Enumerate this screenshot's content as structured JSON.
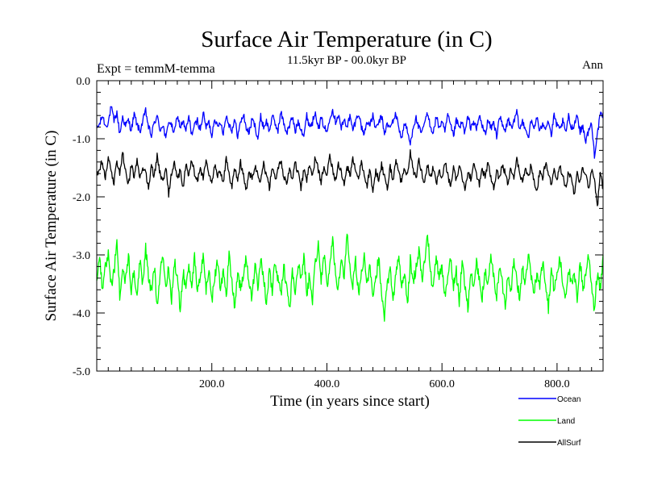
{
  "chart_data": {
    "type": "line",
    "title": "Surface Air Temperature (in C)",
    "subtitle": "11.5kyr BP - 00.0kyr BP",
    "left_note": "Expt = temmM-temma",
    "right_note": "Ann",
    "xlabel": "Time (in years since start)",
    "ylabel": "Surface Air Temperature (in C)",
    "xlim": [
      0,
      880
    ],
    "ylim": [
      -5.0,
      0.0
    ],
    "x_ticks": [
      {
        "value": 200,
        "label": "200.0"
      },
      {
        "value": 400,
        "label": "400.0"
      },
      {
        "value": 600,
        "label": "600.0"
      },
      {
        "value": 800,
        "label": "800.0"
      }
    ],
    "y_ticks": [
      {
        "value": 0.0,
        "label": "0.0"
      },
      {
        "value": -1.0,
        "label": "-1.0"
      },
      {
        "value": -2.0,
        "label": "-2.0"
      },
      {
        "value": -3.0,
        "label": "-3.0"
      },
      {
        "value": -4.0,
        "label": "-4.0"
      },
      {
        "value": -5.0,
        "label": "-5.0"
      }
    ],
    "legend_position": "bottom-right",
    "series": [
      {
        "name": "Ocean",
        "color": "#0000ff",
        "mean": -0.8,
        "x_step": 5,
        "values": [
          -0.82,
          -0.75,
          -0.6,
          -0.78,
          -0.72,
          -0.45,
          -0.7,
          -0.55,
          -0.92,
          -0.62,
          -0.78,
          -0.68,
          -0.85,
          -0.58,
          -0.75,
          -0.88,
          -0.7,
          -0.52,
          -0.8,
          -0.95,
          -0.72,
          -0.62,
          -0.85,
          -0.75,
          -1.02,
          -0.68,
          -0.78,
          -0.9,
          -0.6,
          -0.8,
          -0.7,
          -0.88,
          -0.62,
          -0.92,
          -0.78,
          -0.68,
          -0.85,
          -0.55,
          -0.8,
          -0.72,
          -0.95,
          -0.62,
          -0.82,
          -0.7,
          -0.9,
          -0.6,
          -0.75,
          -0.85,
          -0.68,
          -0.95,
          -0.72,
          -0.58,
          -0.82,
          -0.9,
          -0.66,
          -0.78,
          -1.0,
          -0.62,
          -0.8,
          -0.7,
          -0.88,
          -0.6,
          -0.75,
          -0.85,
          -0.55,
          -0.72,
          -0.9,
          -0.78,
          -0.62,
          -0.88,
          -0.7,
          -0.82,
          -0.95,
          -0.6,
          -0.78,
          -0.72,
          -0.5,
          -0.85,
          -0.65,
          -0.78,
          -0.9,
          -0.62,
          -0.5,
          -0.7,
          -0.58,
          -0.82,
          -0.68,
          -0.78,
          -0.62,
          -0.85,
          -0.7,
          -0.55,
          -0.8,
          -0.92,
          -0.68,
          -0.78,
          -0.6,
          -0.85,
          -0.72,
          -0.62,
          -0.9,
          -0.75,
          -0.82,
          -0.68,
          -0.58,
          -0.8,
          -1.0,
          -0.72,
          -0.88,
          -1.1,
          -0.78,
          -0.65,
          -0.82,
          -0.92,
          -0.7,
          -0.58,
          -0.78,
          -0.9,
          -0.62,
          -0.8,
          -0.72,
          -0.88,
          -0.6,
          -0.78,
          -0.95,
          -0.68,
          -0.82,
          -0.72,
          -0.9,
          -0.62,
          -0.8,
          -0.7,
          -0.85,
          -0.6,
          -0.78,
          -0.92,
          -0.68,
          -0.82,
          -0.72,
          -0.95,
          -0.6,
          -0.78,
          -0.88,
          -0.66,
          -0.8,
          -0.72,
          -0.55,
          -0.85,
          -0.7,
          -0.8,
          -0.98,
          -0.7,
          -0.82,
          -0.62,
          -0.9,
          -0.72,
          -0.8,
          -0.68,
          -0.95,
          -0.6,
          -0.78,
          -0.85,
          -0.7,
          -0.9,
          -0.62,
          -0.82,
          -0.75,
          -0.58,
          -0.88,
          -0.78,
          -1.05,
          -0.85,
          -0.75,
          -1.28,
          -0.92,
          -0.6
        ]
      },
      {
        "name": "Land",
        "color": "#00ff00",
        "mean": -3.35,
        "x_step": 5,
        "values": [
          -3.4,
          -3.1,
          -3.6,
          -3.2,
          -2.95,
          -3.5,
          -3.3,
          -2.8,
          -3.7,
          -3.15,
          -3.45,
          -3.0,
          -3.6,
          -3.3,
          -3.8,
          -3.1,
          -3.5,
          -2.9,
          -3.4,
          -3.65,
          -3.2,
          -3.85,
          -3.3,
          -3.0,
          -3.55,
          -3.25,
          -3.75,
          -3.1,
          -3.45,
          -3.9,
          -3.3,
          -3.6,
          -3.15,
          -3.5,
          -3.05,
          -3.7,
          -3.35,
          -3.0,
          -3.6,
          -3.25,
          -3.8,
          -3.4,
          -3.1,
          -3.55,
          -3.3,
          -3.7,
          -3.0,
          -3.45,
          -3.9,
          -3.25,
          -3.6,
          -3.35,
          -3.05,
          -3.5,
          -3.75,
          -3.2,
          -3.55,
          -3.0,
          -3.4,
          -3.85,
          -3.3,
          -3.6,
          -3.1,
          -3.45,
          -3.7,
          -3.2,
          -3.5,
          -3.95,
          -3.3,
          -3.6,
          -3.15,
          -3.45,
          -3.0,
          -3.65,
          -3.35,
          -3.75,
          -3.1,
          -2.85,
          -3.4,
          -3.0,
          -3.55,
          -3.2,
          -2.75,
          -3.3,
          -3.6,
          -3.0,
          -3.4,
          -2.6,
          -3.2,
          -3.5,
          -3.1,
          -3.7,
          -3.3,
          -3.0,
          -3.55,
          -3.2,
          -3.8,
          -3.4,
          -3.05,
          -3.6,
          -4.05,
          -3.5,
          -3.2,
          -3.75,
          -3.35,
          -3.0,
          -3.6,
          -3.3,
          -3.85,
          -3.1,
          -3.5,
          -3.2,
          -2.9,
          -3.45,
          -3.1,
          -2.65,
          -3.3,
          -3.6,
          -3.0,
          -3.45,
          -3.2,
          -3.7,
          -3.35,
          -3.05,
          -3.55,
          -3.3,
          -3.8,
          -3.15,
          -3.5,
          -3.9,
          -3.3,
          -3.6,
          -3.1,
          -3.45,
          -3.75,
          -3.25,
          -3.55,
          -3.0,
          -3.4,
          -3.7,
          -3.2,
          -3.5,
          -3.85,
          -3.3,
          -3.6,
          -3.1,
          -3.45,
          -3.75,
          -3.2,
          -3.5,
          -3.0,
          -3.4,
          -3.65,
          -3.3,
          -3.55,
          -3.1,
          -3.45,
          -3.9,
          -3.25,
          -3.6,
          -3.35,
          -3.05,
          -3.5,
          -3.7,
          -3.2,
          -3.55,
          -3.35,
          -3.75,
          -3.1,
          -3.6,
          -3.3,
          -3.0,
          -3.5,
          -3.95,
          -3.3,
          -3.6,
          -3.1,
          -3.4
        ]
      },
      {
        "name": "AllSurf",
        "color": "#000000",
        "mean": -1.6,
        "x_step": 5,
        "values": [
          -1.65,
          -1.5,
          -1.4,
          -1.7,
          -1.3,
          -1.55,
          -1.75,
          -1.4,
          -1.6,
          -1.25,
          -1.55,
          -1.8,
          -1.45,
          -1.65,
          -1.35,
          -1.7,
          -1.5,
          -1.6,
          -1.85,
          -1.45,
          -1.65,
          -1.3,
          -1.6,
          -1.75,
          -1.5,
          -1.95,
          -1.6,
          -1.4,
          -1.7,
          -1.55,
          -1.85,
          -1.45,
          -1.65,
          -1.35,
          -1.6,
          -1.75,
          -1.5,
          -1.7,
          -1.4,
          -1.6,
          -1.8,
          -1.45,
          -1.65,
          -1.55,
          -1.75,
          -1.35,
          -1.6,
          -1.85,
          -1.5,
          -1.7,
          -1.4,
          -1.65,
          -1.9,
          -1.55,
          -1.7,
          -1.45,
          -1.6,
          -1.75,
          -1.4,
          -1.65,
          -1.85,
          -1.5,
          -1.7,
          -1.55,
          -1.35,
          -1.65,
          -1.8,
          -1.5,
          -1.7,
          -1.4,
          -1.6,
          -1.85,
          -1.55,
          -1.7,
          -1.45,
          -1.65,
          -1.3,
          -1.55,
          -1.75,
          -1.45,
          -1.6,
          -1.25,
          -1.55,
          -1.7,
          -1.4,
          -1.6,
          -1.8,
          -1.45,
          -1.65,
          -1.35,
          -1.55,
          -1.7,
          -1.4,
          -1.6,
          -1.8,
          -1.5,
          -1.95,
          -1.55,
          -1.7,
          -1.45,
          -1.65,
          -1.85,
          -1.5,
          -1.7,
          -1.4,
          -1.6,
          -1.75,
          -1.5,
          -1.65,
          -1.2,
          -1.55,
          -1.7,
          -1.35,
          -1.6,
          -1.75,
          -1.45,
          -1.65,
          -1.5,
          -1.8,
          -1.55,
          -1.7,
          -1.4,
          -1.6,
          -1.85,
          -1.5,
          -1.7,
          -1.45,
          -1.65,
          -1.9,
          -1.55,
          -1.7,
          -1.45,
          -1.6,
          -1.8,
          -1.5,
          -1.7,
          -1.4,
          -1.65,
          -1.85,
          -1.55,
          -1.7,
          -1.45,
          -1.6,
          -1.8,
          -1.5,
          -1.7,
          -1.35,
          -1.6,
          -1.75,
          -1.5,
          -1.65,
          -1.45,
          -1.7,
          -1.9,
          -1.55,
          -1.7,
          -1.4,
          -1.6,
          -1.8,
          -1.5,
          -1.7,
          -1.45,
          -1.65,
          -1.85,
          -1.55,
          -1.7,
          -1.95,
          -1.6,
          -1.75,
          -1.5,
          -1.65,
          -1.85,
          -1.55,
          -1.7,
          -2.2,
          -1.6,
          -1.85,
          -1.45
        ]
      }
    ]
  }
}
